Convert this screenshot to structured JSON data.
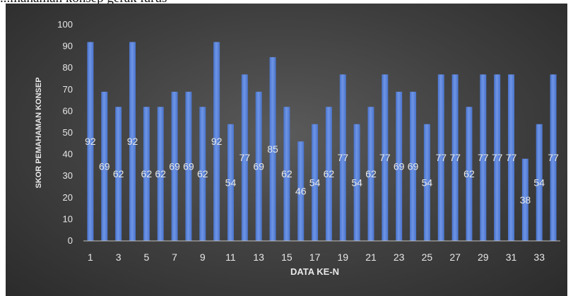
{
  "caption": "...mahaman konsep gerak lurus",
  "chart_data": {
    "type": "bar",
    "ylabel": "SKOR PEMAHAMAN KONSEP",
    "xlabel": "DATA KE-N",
    "ylim": [
      0,
      100
    ],
    "y_ticks": [
      0,
      10,
      20,
      30,
      40,
      50,
      60,
      70,
      80,
      90,
      100
    ],
    "x_tick_labels": [
      "1",
      "3",
      "5",
      "7",
      "9",
      "11",
      "13",
      "15",
      "17",
      "19",
      "21",
      "23",
      "25",
      "27",
      "29",
      "31",
      "33"
    ],
    "categories": [
      1,
      2,
      3,
      4,
      5,
      6,
      7,
      8,
      9,
      10,
      11,
      12,
      13,
      14,
      15,
      16,
      17,
      18,
      19,
      20,
      21,
      22,
      23,
      24,
      25,
      26,
      27,
      28,
      29,
      30,
      31,
      32,
      33,
      34
    ],
    "values": [
      92,
      69,
      62,
      92,
      62,
      62,
      69,
      69,
      62,
      92,
      54,
      77,
      69,
      85,
      62,
      46,
      54,
      62,
      77,
      54,
      62,
      77,
      69,
      69,
      54,
      77,
      77,
      62,
      77,
      77,
      77,
      38,
      54,
      77
    ],
    "data_labels": "center",
    "grid": false,
    "legend": "none",
    "colors": {
      "bar": "#4a74cc",
      "bar_highlight": "#6e95e6",
      "text": "#e8e8e8",
      "axis": "#bdbdbd"
    }
  }
}
